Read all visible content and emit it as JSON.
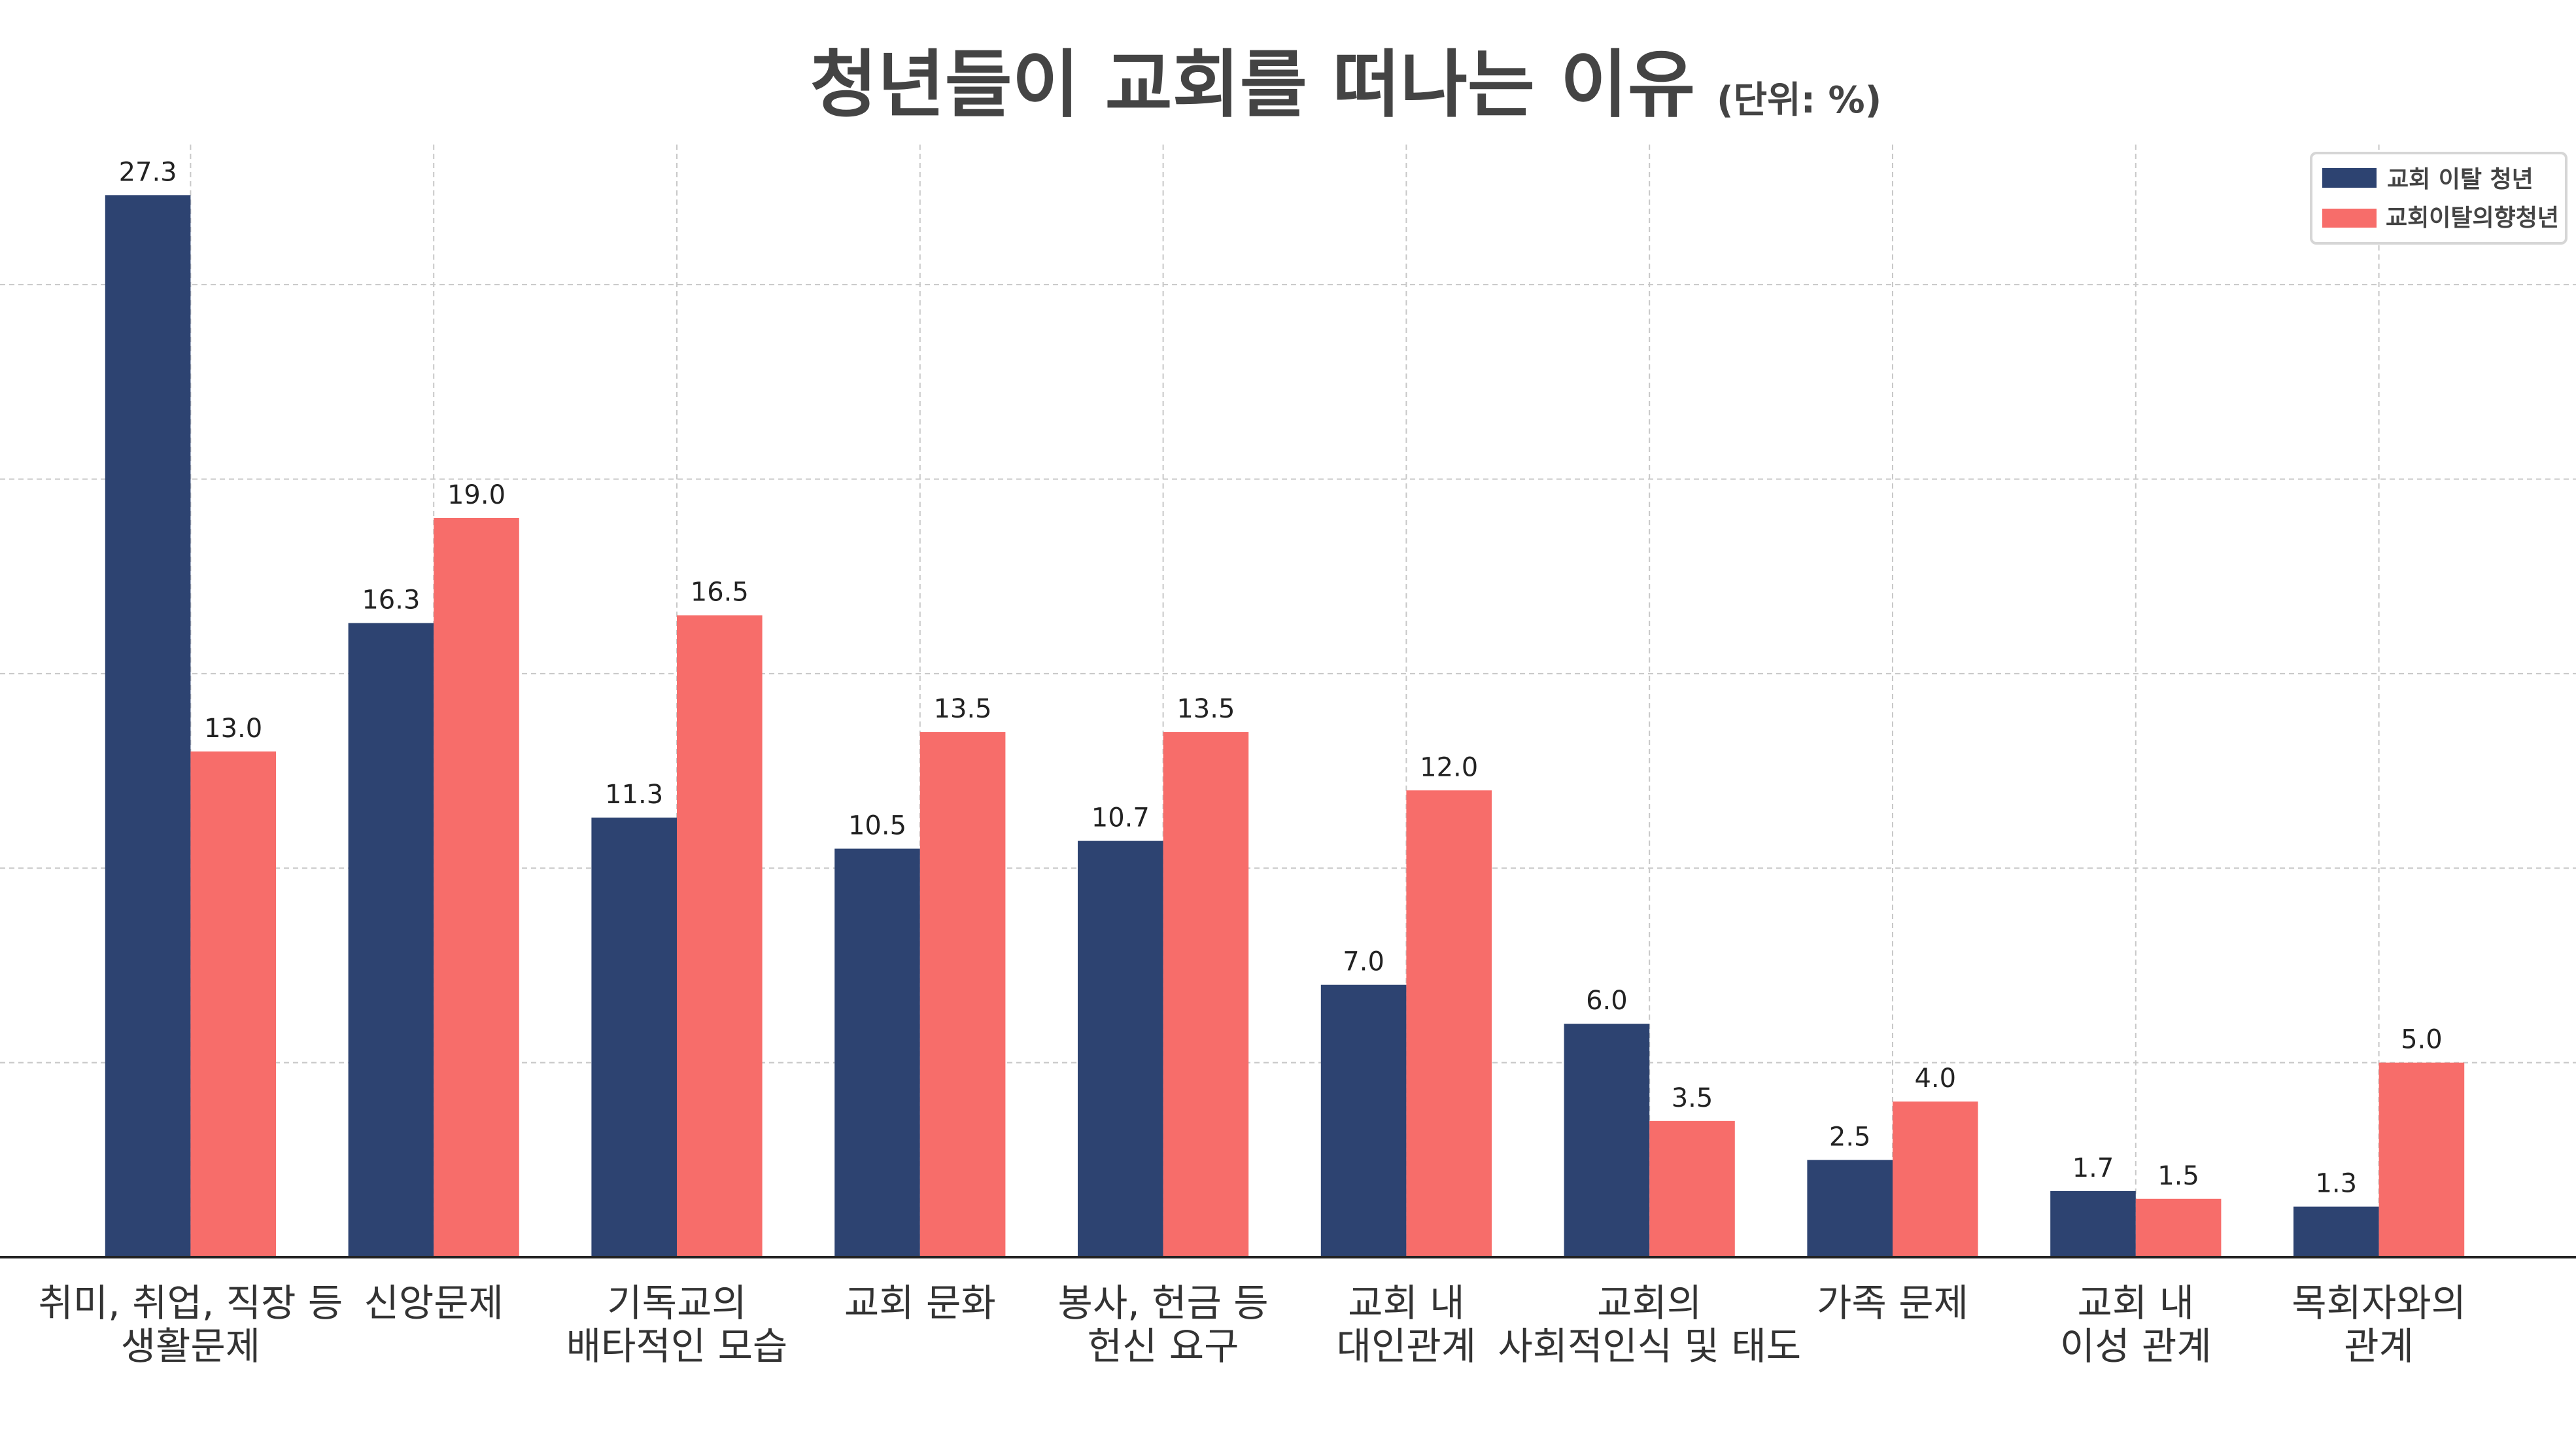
{
  "chart_data": {
    "type": "bar",
    "title": "청년들이 교회를 떠나는 이유",
    "subtitle": "(단위: %)",
    "xlabel": "",
    "ylabel": "",
    "ylim": [
      0,
      28.6
    ],
    "grid": true,
    "legend_position": "top-right",
    "categories": [
      [
        "취미, 취업, 직장 등",
        "생활문제"
      ],
      [
        "신앙문제"
      ],
      [
        "기독교의",
        "배타적인 모습"
      ],
      [
        "교회 문화"
      ],
      [
        "봉사, 헌금 등",
        "헌신 요구"
      ],
      [
        "교회 내",
        "대인관계"
      ],
      [
        "교회의",
        "사회적인식 및 태도"
      ],
      [
        "가족 문제"
      ],
      [
        "교회 내",
        "이성 관계"
      ],
      [
        "목회자와의",
        "관계"
      ]
    ],
    "series": [
      {
        "name": "교회 이탈 청년",
        "color": "#2d4371",
        "values": [
          27.3,
          16.3,
          11.3,
          10.5,
          10.7,
          7.0,
          6.0,
          2.5,
          1.7,
          1.3
        ]
      },
      {
        "name": "교회이탈의향청년",
        "color": "#f76d6a",
        "values": [
          13.0,
          19.0,
          16.5,
          13.5,
          13.5,
          12.0,
          3.5,
          4.0,
          1.5,
          5.0
        ]
      }
    ]
  }
}
